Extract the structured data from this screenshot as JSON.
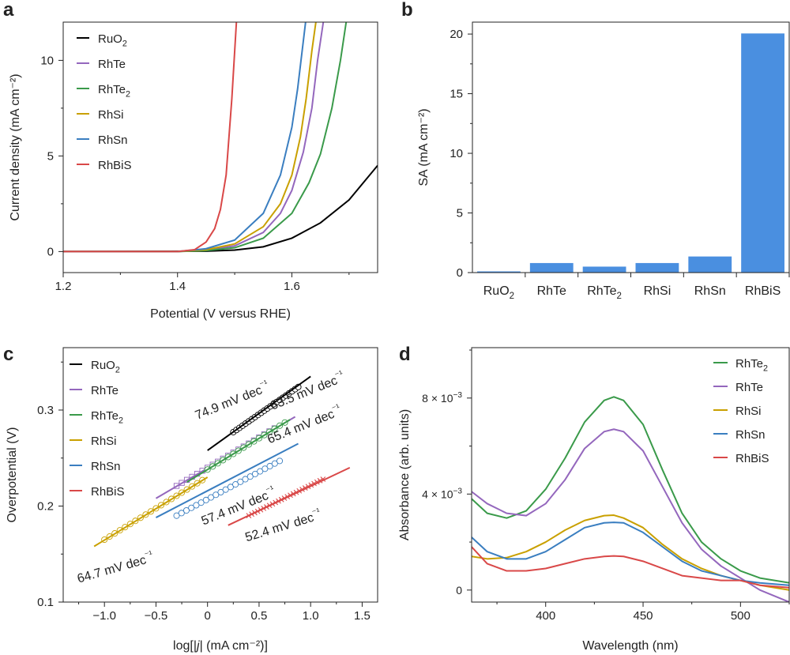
{
  "chart_data": [
    {
      "panel": "a",
      "type": "line",
      "title": "",
      "xlabel": "Potential (V versus RHE)",
      "ylabel": "Current density (mA cm⁻²)",
      "xlim": [
        1.2,
        1.75
      ],
      "ylim": [
        -1.1,
        12
      ],
      "xticks": [
        1.2,
        1.4,
        1.6
      ],
      "yticks": [
        0,
        5,
        10
      ],
      "xtick_labels": [
        "1.2",
        "1.4",
        "1.6"
      ],
      "ytick_labels": [
        "0",
        "5",
        "10"
      ],
      "legend_position": "top-left",
      "series": [
        {
          "name": "RuO2",
          "label": "RuO",
          "sub": "2",
          "color": "#000000",
          "x": [
            1.2,
            1.45,
            1.5,
            1.55,
            1.6,
            1.65,
            1.7,
            1.75
          ],
          "y": [
            0,
            0.02,
            0.08,
            0.25,
            0.7,
            1.5,
            2.7,
            4.5
          ]
        },
        {
          "name": "RhTe",
          "label": "RhTe",
          "sub": "",
          "color": "#9467bd",
          "x": [
            1.2,
            1.4,
            1.45,
            1.5,
            1.55,
            1.58,
            1.6,
            1.62,
            1.635,
            1.645,
            1.655
          ],
          "y": [
            0,
            0,
            0.08,
            0.3,
            1.0,
            2.0,
            3.2,
            5.2,
            7.5,
            10,
            12
          ]
        },
        {
          "name": "RhTe2",
          "label": "RhTe",
          "sub": "2",
          "color": "#3a9a4a",
          "x": [
            1.2,
            1.4,
            1.45,
            1.5,
            1.55,
            1.6,
            1.63,
            1.65,
            1.67,
            1.685,
            1.695
          ],
          "y": [
            0,
            0,
            0.05,
            0.2,
            0.7,
            2.0,
            3.6,
            5.1,
            7.5,
            10,
            12
          ]
        },
        {
          "name": "RhSi",
          "label": "RhSi",
          "sub": "",
          "color": "#c9a000",
          "x": [
            1.2,
            1.4,
            1.45,
            1.5,
            1.55,
            1.58,
            1.6,
            1.615,
            1.625,
            1.635,
            1.642
          ],
          "y": [
            0,
            0,
            0.1,
            0.4,
            1.3,
            2.5,
            4.0,
            6.0,
            8.0,
            10.5,
            12
          ]
        },
        {
          "name": "RhSn",
          "label": "RhSn",
          "sub": "",
          "color": "#3a7ec0",
          "x": [
            1.2,
            1.4,
            1.45,
            1.5,
            1.55,
            1.58,
            1.6,
            1.61,
            1.618,
            1.624
          ],
          "y": [
            0,
            0,
            0.15,
            0.6,
            2.0,
            4.0,
            6.5,
            8.5,
            10.5,
            12
          ]
        },
        {
          "name": "RhBiS",
          "label": "RhBiS",
          "sub": "",
          "color": "#d94848",
          "x": [
            1.2,
            1.4,
            1.43,
            1.45,
            1.465,
            1.475,
            1.485,
            1.49,
            1.495,
            1.5,
            1.503
          ],
          "y": [
            0,
            0,
            0.1,
            0.5,
            1.2,
            2.2,
            4.0,
            6.0,
            8.0,
            10.5,
            12
          ]
        }
      ]
    },
    {
      "panel": "b",
      "type": "bar",
      "title": "",
      "xlabel": "",
      "ylabel": "SA (mA cm⁻²)",
      "ylim": [
        0,
        21
      ],
      "yticks": [
        0,
        5,
        10,
        15,
        20
      ],
      "ytick_labels": [
        "0",
        "5",
        "10",
        "15",
        "20"
      ],
      "bar_color": "#4a8fe0",
      "categories": [
        {
          "name": "RuO2",
          "label": "RuO",
          "sub": "2"
        },
        {
          "name": "RhTe",
          "label": "RhTe",
          "sub": ""
        },
        {
          "name": "RhTe2",
          "label": "RhTe",
          "sub": "2"
        },
        {
          "name": "RhSi",
          "label": "RhSi",
          "sub": ""
        },
        {
          "name": "RhSn",
          "label": "RhSn",
          "sub": ""
        },
        {
          "name": "RhBiS",
          "label": "RhBiS",
          "sub": ""
        }
      ],
      "values": [
        0.1,
        0.8,
        0.5,
        0.8,
        1.35,
        20.05
      ]
    },
    {
      "panel": "c",
      "type": "scatter",
      "title": "",
      "xlabel_parts": [
        "log[|",
        "j",
        "| (mA cm⁻²)]"
      ],
      "ylabel": "Overpotential (V)",
      "xlim": [
        -1.4,
        1.65
      ],
      "ylim": [
        0.1,
        0.365
      ],
      "xticks": [
        -1.0,
        -0.5,
        0,
        0.5,
        1.0,
        1.5
      ],
      "xtick_labels": [
        "−1.0",
        "−0.5",
        "0",
        "0.5",
        "1.0",
        "1.5"
      ],
      "yticks": [
        0.1,
        0.2,
        0.3
      ],
      "ytick_labels": [
        "0.1",
        "0.2",
        "0.3"
      ],
      "legend_position": "top-left",
      "series": [
        {
          "name": "RuO2",
          "label": "RuO",
          "sub": "2",
          "color": "#000000",
          "fit_x": [
            0.0,
            1.0
          ],
          "fit_y": [
            0.258,
            0.335
          ],
          "points_x_range": [
            0.25,
            0.88
          ],
          "points_y_range": [
            0.277,
            0.324
          ],
          "n_points": 22,
          "marker": "circle",
          "slope_label": "74.9 mV dec⁻¹",
          "label_anchor": [
            -0.1,
            0.29
          ],
          "label_angle": -22
        },
        {
          "name": "RhTe",
          "label": "RhTe",
          "sub": "",
          "color": "#9467bd",
          "fit_x": [
            -0.5,
            0.85
          ],
          "fit_y": [
            0.208,
            0.293
          ],
          "points_x_range": [
            -0.3,
            0.65
          ],
          "points_y_range": [
            0.221,
            0.281
          ],
          "n_points": 20,
          "marker": "square",
          "slope_label": "63.5 mV dec⁻¹",
          "label_anchor": [
            0.63,
            0.3
          ],
          "label_angle": -22
        },
        {
          "name": "RhTe2",
          "label": "RhTe",
          "sub": "2",
          "color": "#3a9a4a",
          "fit_x": [
            -0.2,
            0.8
          ],
          "fit_y": [
            0.225,
            0.29
          ],
          "points_x_range": [
            0.0,
            0.75
          ],
          "points_y_range": [
            0.238,
            0.287
          ],
          "n_points": 16,
          "marker": "circle",
          "slope_label": "65.4 mV dec⁻¹",
          "label_anchor": [
            0.6,
            0.265
          ],
          "label_angle": -22
        },
        {
          "name": "RhSi",
          "label": "RhSi",
          "sub": "",
          "color": "#c9a000",
          "fit_x": [
            -1.1,
            0.0
          ],
          "fit_y": [
            0.158,
            0.23
          ],
          "points_x_range": [
            -1.0,
            -0.05
          ],
          "points_y_range": [
            0.165,
            0.227
          ],
          "n_points": 20,
          "marker": "circle",
          "slope_label": "64.7 mV dec⁻¹",
          "label_anchor": [
            -1.25,
            0.12
          ],
          "label_angle": -16
        },
        {
          "name": "RhSn",
          "label": "RhSn",
          "sub": "",
          "color": "#3a7ec0",
          "fit_x": [
            -0.5,
            0.88
          ],
          "fit_y": [
            0.188,
            0.265
          ],
          "points_x_range": [
            -0.3,
            0.7
          ],
          "points_y_range": [
            0.19,
            0.247
          ],
          "n_points": 22,
          "marker": "circle",
          "slope_label": "57.4 mV dec⁻¹",
          "label_anchor": [
            -0.04,
            0.18
          ],
          "label_angle": -22
        },
        {
          "name": "RhBiS",
          "label": "RhBiS",
          "sub": "",
          "color": "#d94848",
          "fit_x": [
            0.2,
            1.38
          ],
          "fit_y": [
            0.18,
            0.24
          ],
          "points_x_range": [
            0.4,
            1.12
          ],
          "points_y_range": [
            0.19,
            0.228
          ],
          "n_points": 26,
          "marker": "cross",
          "slope_label": "52.4 mV dec⁻¹",
          "label_anchor": [
            0.38,
            0.163
          ],
          "label_angle": -17
        }
      ]
    },
    {
      "panel": "d",
      "type": "line",
      "title": "",
      "xlabel": "Wavelength (nm)",
      "ylabel": "Absorbance (arb. units)",
      "xlim": [
        362,
        525
      ],
      "ylim": [
        -0.0005,
        0.0101
      ],
      "xticks": [
        400,
        450,
        500
      ],
      "xtick_labels": [
        "400",
        "450",
        "500"
      ],
      "yticks": [
        0,
        0.004,
        0.008
      ],
      "ytick_labels": [
        {
          "base": "0",
          "exp": ""
        },
        {
          "base": "4 × 10",
          "exp": "−3"
        },
        {
          "base": "8 × 10",
          "exp": "−3"
        }
      ],
      "legend_position": "top-right",
      "series": [
        {
          "name": "RhTe2",
          "label": "RhTe",
          "sub": "2",
          "color": "#3a9a4a",
          "x": [
            362,
            370,
            380,
            390,
            400,
            410,
            420,
            430,
            435,
            440,
            450,
            460,
            470,
            480,
            490,
            500,
            510,
            525
          ],
          "y": [
            0.0038,
            0.0032,
            0.003,
            0.0033,
            0.0042,
            0.0055,
            0.007,
            0.0079,
            0.00805,
            0.0079,
            0.0069,
            0.005,
            0.0032,
            0.002,
            0.0013,
            0.0008,
            0.0005,
            0.0003
          ]
        },
        {
          "name": "RhTe",
          "label": "RhTe",
          "sub": "",
          "color": "#9467bd",
          "x": [
            362,
            370,
            380,
            390,
            400,
            410,
            420,
            430,
            435,
            440,
            450,
            460,
            470,
            480,
            490,
            500,
            510,
            525
          ],
          "y": [
            0.0041,
            0.0036,
            0.0032,
            0.0031,
            0.0036,
            0.0046,
            0.0059,
            0.0066,
            0.0067,
            0.0066,
            0.0058,
            0.0043,
            0.0028,
            0.0017,
            0.001,
            0.0005,
            0.0,
            -0.0005
          ]
        },
        {
          "name": "RhSi",
          "label": "RhSi",
          "sub": "",
          "color": "#c9a000",
          "x": [
            362,
            370,
            380,
            390,
            400,
            410,
            420,
            430,
            435,
            440,
            450,
            460,
            470,
            480,
            490,
            500,
            510,
            525
          ],
          "y": [
            0.0014,
            0.0013,
            0.00135,
            0.0016,
            0.002,
            0.0025,
            0.0029,
            0.0031,
            0.00312,
            0.003,
            0.0026,
            0.0019,
            0.0013,
            0.0009,
            0.0006,
            0.0004,
            0.0002,
            0.0
          ]
        },
        {
          "name": "RhSn",
          "label": "RhSn",
          "sub": "",
          "color": "#3a7ec0",
          "x": [
            362,
            370,
            380,
            390,
            400,
            410,
            420,
            430,
            435,
            440,
            450,
            460,
            470,
            480,
            490,
            500,
            510,
            525
          ],
          "y": [
            0.0022,
            0.0016,
            0.0013,
            0.0013,
            0.0016,
            0.0021,
            0.0026,
            0.0028,
            0.00282,
            0.0028,
            0.0024,
            0.0018,
            0.0012,
            0.0008,
            0.0006,
            0.0004,
            0.0003,
            0.0002
          ]
        },
        {
          "name": "RhBiS",
          "label": "RhBiS",
          "sub": "",
          "color": "#d94848",
          "x": [
            362,
            370,
            380,
            390,
            400,
            410,
            420,
            430,
            435,
            440,
            450,
            460,
            470,
            480,
            490,
            500,
            510,
            525
          ],
          "y": [
            0.0018,
            0.0011,
            0.0008,
            0.0008,
            0.0009,
            0.0011,
            0.0013,
            0.0014,
            0.00142,
            0.0014,
            0.0012,
            0.0009,
            0.0006,
            0.0005,
            0.0004,
            0.0004,
            0.0002,
            0.0001
          ]
        }
      ]
    }
  ],
  "panel_letters": [
    "a",
    "b",
    "c",
    "d"
  ]
}
